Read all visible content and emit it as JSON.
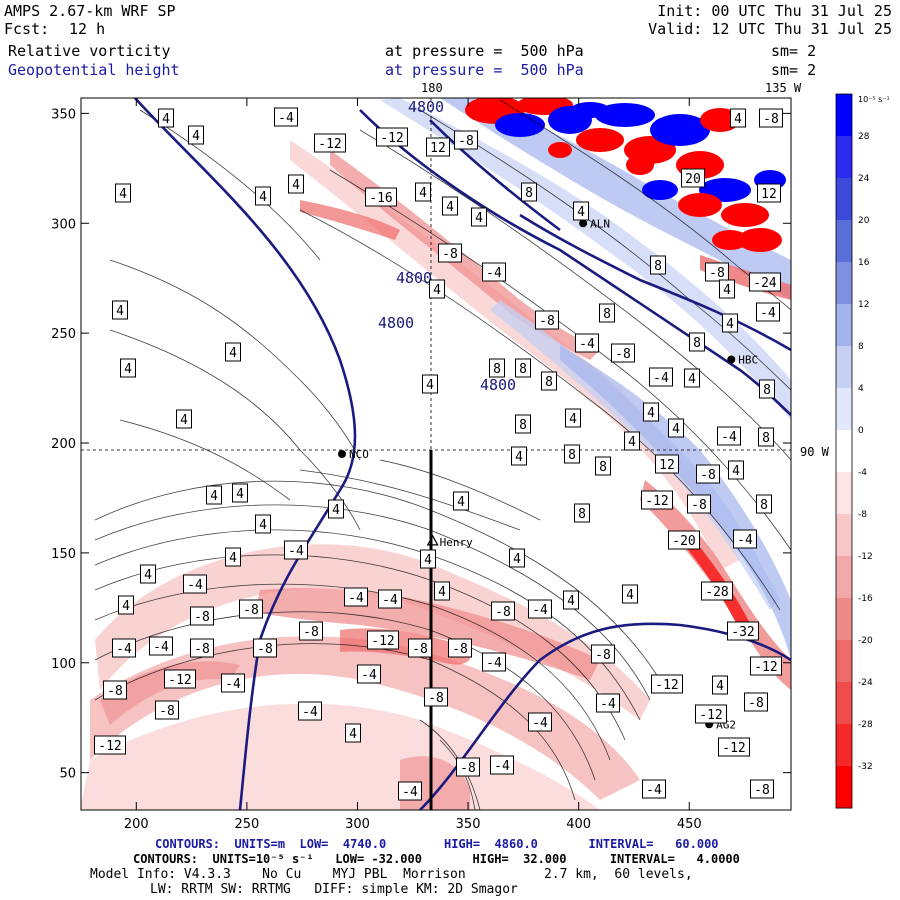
{
  "header": {
    "model": "AMPS 2.67-km WRF SP",
    "fcst_label": "Fcst:",
    "fcst_value": "12 h",
    "init": "Init: 00 UTC Thu 31 Jul 25",
    "valid": "Valid: 12 UTC Thu 31 Jul 25",
    "field1_name": "Relative vorticity",
    "field1_level": "at pressure =  500 hPa",
    "field1_sm": "sm= 2",
    "field2_name": "Geopotential height",
    "field2_level": "at pressure =  500 hPa",
    "field2_sm": "sm= 2"
  },
  "map_labels": {
    "lon_180": "180",
    "lon_135w": "135 W",
    "lon_90w": "90 W",
    "stations": [
      {
        "name": "NCO",
        "x": 293,
        "y": 195
      },
      {
        "name": "Henry",
        "x": 334,
        "y": 155
      },
      {
        "name": "ALN",
        "x": 402,
        "y": 300
      },
      {
        "name": "HBC",
        "x": 469,
        "y": 238
      },
      {
        "name": "AG2",
        "x": 459,
        "y": 72
      }
    ]
  },
  "footer": {
    "line1": "CONTOURS:  UNITS=m  LOW=  4740.0        HIGH=  4860.0       INTERVAL=   60.000",
    "line2": "CONTOURS:  UNITS=10⁻⁵ s⁻¹   LOW= -32.000       HIGH=  32.000      INTERVAL=   4.0000",
    "line3": "Model Info: V4.3.3    No Cu    MYJ PBL  Morrison          2.7 km,  60 levels,",
    "line4": "LW: RRTM SW: RRTMG   DIFF: simple KM: 2D Smagor"
  },
  "colors": {
    "height_contour": "#1a1a80",
    "vort_contour": "#000000",
    "positive_max": "#0000ff",
    "negative_max": "#ff0000"
  },
  "chart_data": {
    "type": "contour-map",
    "xlim": [
      175,
      496
    ],
    "ylim": [
      33,
      357
    ],
    "xticks": [
      200,
      250,
      300,
      350,
      400,
      450
    ],
    "yticks": [
      50,
      100,
      150,
      200,
      250,
      300,
      350
    ],
    "colorbar": {
      "units": "10⁻⁵ s⁻¹",
      "levels": [
        32,
        28,
        24,
        20,
        16,
        12,
        8,
        4,
        0,
        -4,
        -8,
        -12,
        -16,
        -20,
        -24,
        -28,
        -32
      ],
      "colors": [
        "#0000ff",
        "#2a2af0",
        "#3d4ad9",
        "#5a6ed8",
        "#8090e0",
        "#a3b3ec",
        "#c6d0f4",
        "#e2e8fb",
        "#ffffff",
        "#fde5e5",
        "#f8c7c7",
        "#f2a8a8",
        "#ef8a8a",
        "#ef6b6b",
        "#f04c4c",
        "#f52828",
        "#ff0000"
      ]
    },
    "height_contours": [
      {
        "label": "4800",
        "positions": [
          [
            396,
            328
          ],
          [
            414,
            283
          ],
          [
            426,
            112
          ],
          [
            460,
            80
          ],
          [
            498,
            390
          ],
          [
            428,
            45
          ]
        ]
      }
    ],
    "vort_labels": [
      {
        "v": "4",
        "x": 166,
        "y": 118
      },
      {
        "v": "4",
        "x": 196,
        "y": 135
      },
      {
        "v": "-4",
        "x": 286,
        "y": 117
      },
      {
        "v": "-12",
        "x": 330,
        "y": 143
      },
      {
        "v": "-12",
        "x": 392,
        "y": 137
      },
      {
        "v": "12",
        "x": 438,
        "y": 147
      },
      {
        "v": "-8",
        "x": 466,
        "y": 140
      },
      {
        "v": "4",
        "x": 738,
        "y": 118
      },
      {
        "v": "-8",
        "x": 771,
        "y": 118
      },
      {
        "v": "4",
        "x": 123,
        "y": 193
      },
      {
        "v": "4",
        "x": 263,
        "y": 196
      },
      {
        "v": "4",
        "x": 296,
        "y": 184
      },
      {
        "v": "4",
        "x": 423,
        "y": 192
      },
      {
        "v": "-16",
        "x": 381,
        "y": 197
      },
      {
        "v": "4",
        "x": 450,
        "y": 206
      },
      {
        "v": "4",
        "x": 479,
        "y": 217
      },
      {
        "v": "8",
        "x": 529,
        "y": 192
      },
      {
        "v": "-8",
        "x": 450,
        "y": 253
      },
      {
        "v": "-4",
        "x": 494,
        "y": 272
      },
      {
        "v": "4",
        "x": 581,
        "y": 211
      },
      {
        "v": "20",
        "x": 693,
        "y": 178
      },
      {
        "v": "12",
        "x": 769,
        "y": 193
      },
      {
        "v": "8",
        "x": 658,
        "y": 265
      },
      {
        "v": "-8",
        "x": 717,
        "y": 272
      },
      {
        "v": "-24",
        "x": 765,
        "y": 282
      },
      {
        "v": "4",
        "x": 727,
        "y": 289
      },
      {
        "v": "4",
        "x": 437,
        "y": 289
      },
      {
        "v": "-8",
        "x": 547,
        "y": 320
      },
      {
        "v": "8",
        "x": 607,
        "y": 313
      },
      {
        "v": "-4",
        "x": 768,
        "y": 312
      },
      {
        "v": "4",
        "x": 120,
        "y": 310
      },
      {
        "v": "4",
        "x": 730,
        "y": 323
      },
      {
        "v": "-4",
        "x": 587,
        "y": 343
      },
      {
        "v": "-8",
        "x": 623,
        "y": 353
      },
      {
        "v": "8",
        "x": 697,
        "y": 342
      },
      {
        "v": "4",
        "x": 233,
        "y": 352
      },
      {
        "v": "4",
        "x": 128,
        "y": 368
      },
      {
        "v": "8",
        "x": 497,
        "y": 368
      },
      {
        "v": "8",
        "x": 523,
        "y": 368
      },
      {
        "v": "8",
        "x": 549,
        "y": 381
      },
      {
        "v": "-4",
        "x": 661,
        "y": 377
      },
      {
        "v": "4",
        "x": 430,
        "y": 384
      },
      {
        "v": "4",
        "x": 692,
        "y": 378
      },
      {
        "v": "8",
        "x": 767,
        "y": 389
      },
      {
        "v": "4",
        "x": 184,
        "y": 419
      },
      {
        "v": "8",
        "x": 523,
        "y": 424
      },
      {
        "v": "4",
        "x": 573,
        "y": 418
      },
      {
        "v": "4",
        "x": 651,
        "y": 412
      },
      {
        "v": "4",
        "x": 676,
        "y": 428
      },
      {
        "v": "4",
        "x": 632,
        "y": 441
      },
      {
        "v": "-4",
        "x": 729,
        "y": 436
      },
      {
        "v": "8",
        "x": 766,
        "y": 437
      },
      {
        "v": "4",
        "x": 519,
        "y": 456
      },
      {
        "v": "8",
        "x": 572,
        "y": 454
      },
      {
        "v": "8",
        "x": 603,
        "y": 466
      },
      {
        "v": "12",
        "x": 667,
        "y": 464
      },
      {
        "v": "-8",
        "x": 708,
        "y": 474
      },
      {
        "v": "4",
        "x": 736,
        "y": 470
      },
      {
        "v": "4",
        "x": 214,
        "y": 495
      },
      {
        "v": "4",
        "x": 240,
        "y": 493
      },
      {
        "v": "4",
        "x": 461,
        "y": 501
      },
      {
        "v": "4",
        "x": 336,
        "y": 509
      },
      {
        "v": "8",
        "x": 582,
        "y": 513
      },
      {
        "v": "-12",
        "x": 657,
        "y": 500
      },
      {
        "v": "-8",
        "x": 699,
        "y": 504
      },
      {
        "v": "8",
        "x": 764,
        "y": 504
      },
      {
        "v": "4",
        "x": 263,
        "y": 524
      },
      {
        "v": "-20",
        "x": 684,
        "y": 540
      },
      {
        "v": "-4",
        "x": 745,
        "y": 539
      },
      {
        "v": "4",
        "x": 428,
        "y": 559
      },
      {
        "v": "4",
        "x": 517,
        "y": 558
      },
      {
        "v": "-4",
        "x": 296,
        "y": 550
      },
      {
        "v": "4",
        "x": 233,
        "y": 557
      },
      {
        "v": "4",
        "x": 148,
        "y": 574
      },
      {
        "v": "-4",
        "x": 195,
        "y": 584
      },
      {
        "v": "4",
        "x": 442,
        "y": 591
      },
      {
        "v": "4",
        "x": 630,
        "y": 594
      },
      {
        "v": "-28",
        "x": 717,
        "y": 591
      },
      {
        "v": "4",
        "x": 126,
        "y": 605
      },
      {
        "v": "-8",
        "x": 202,
        "y": 616
      },
      {
        "v": "-8",
        "x": 251,
        "y": 609
      },
      {
        "v": "-4",
        "x": 356,
        "y": 597
      },
      {
        "v": "-4",
        "x": 390,
        "y": 599
      },
      {
        "v": "-8",
        "x": 503,
        "y": 611
      },
      {
        "v": "-4",
        "x": 540,
        "y": 609
      },
      {
        "v": "4",
        "x": 571,
        "y": 600
      },
      {
        "v": "-32",
        "x": 743,
        "y": 631
      },
      {
        "v": "-8",
        "x": 311,
        "y": 631
      },
      {
        "v": "-4",
        "x": 124,
        "y": 648
      },
      {
        "v": "-4",
        "x": 161,
        "y": 646
      },
      {
        "v": "-8",
        "x": 202,
        "y": 648
      },
      {
        "v": "-8",
        "x": 265,
        "y": 648
      },
      {
        "v": "-12",
        "x": 383,
        "y": 640
      },
      {
        "v": "-8",
        "x": 420,
        "y": 648
      },
      {
        "v": "-8",
        "x": 460,
        "y": 648
      },
      {
        "v": "-4",
        "x": 494,
        "y": 662
      },
      {
        "v": "-8",
        "x": 603,
        "y": 654
      },
      {
        "v": "-12",
        "x": 766,
        "y": 666
      },
      {
        "v": "-4",
        "x": 369,
        "y": 674
      },
      {
        "v": "-12",
        "x": 180,
        "y": 679
      },
      {
        "v": "-4",
        "x": 233,
        "y": 683
      },
      {
        "v": "-12",
        "x": 667,
        "y": 684
      },
      {
        "v": "4",
        "x": 720,
        "y": 685
      },
      {
        "v": "-8",
        "x": 115,
        "y": 690
      },
      {
        "v": "-8",
        "x": 436,
        "y": 697
      },
      {
        "v": "-8",
        "x": 167,
        "y": 710
      },
      {
        "v": "-4",
        "x": 310,
        "y": 711
      },
      {
        "v": "-4",
        "x": 608,
        "y": 703
      },
      {
        "v": "-8",
        "x": 756,
        "y": 702
      },
      {
        "v": "-12",
        "x": 711,
        "y": 714
      },
      {
        "v": "-4",
        "x": 540,
        "y": 722
      },
      {
        "v": "4",
        "x": 353,
        "y": 733
      },
      {
        "v": "-12",
        "x": 110,
        "y": 745
      },
      {
        "v": "-12",
        "x": 734,
        "y": 747
      },
      {
        "v": "-8",
        "x": 468,
        "y": 767
      },
      {
        "v": "-4",
        "x": 502,
        "y": 765
      },
      {
        "v": "-4",
        "x": 410,
        "y": 791
      },
      {
        "v": "-4",
        "x": 654,
        "y": 789
      },
      {
        "v": "-8",
        "x": 762,
        "y": 789
      }
    ]
  }
}
